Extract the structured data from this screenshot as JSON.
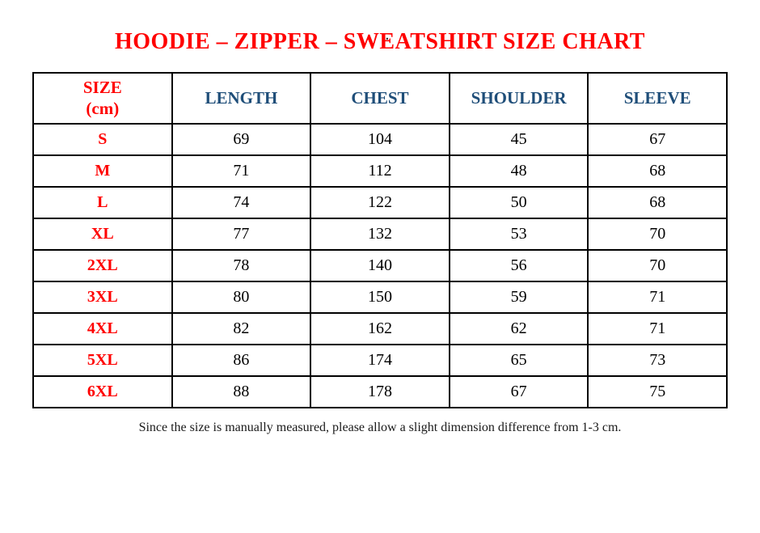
{
  "page": {
    "artifact_dot": ".",
    "title": "HOODIE – ZIPPER – SWEATSHIRT SIZE CHART",
    "footnote": "Since the size is manually measured, please allow a slight dimension difference from 1-3 cm."
  },
  "colors": {
    "title_red": "#ff0000",
    "header_blue": "#1f4e79",
    "border_black": "#000000"
  },
  "size_chart": {
    "headers": [
      {
        "label": "SIZE",
        "sublabel": "(cm)",
        "color": "red"
      },
      {
        "label": "LENGTH",
        "sublabel": "",
        "color": "blue"
      },
      {
        "label": "CHEST",
        "sublabel": "",
        "color": "blue"
      },
      {
        "label": "SHOULDER",
        "sublabel": "",
        "color": "blue"
      },
      {
        "label": "SLEEVE",
        "sublabel": "",
        "color": "blue"
      }
    ],
    "rows": [
      {
        "size": "S",
        "values": [
          "69",
          "104",
          "45",
          "67"
        ]
      },
      {
        "size": "M",
        "values": [
          "71",
          "112",
          "48",
          "68"
        ]
      },
      {
        "size": "L",
        "values": [
          "74",
          "122",
          "50",
          "68"
        ]
      },
      {
        "size": "XL",
        "values": [
          "77",
          "132",
          "53",
          "70"
        ]
      },
      {
        "size": "2XL",
        "values": [
          "78",
          "140",
          "56",
          "70"
        ]
      },
      {
        "size": "3XL",
        "values": [
          "80",
          "150",
          "59",
          "71"
        ]
      },
      {
        "size": "4XL",
        "values": [
          "82",
          "162",
          "62",
          "71"
        ]
      },
      {
        "size": "5XL",
        "values": [
          "86",
          "174",
          "65",
          "73"
        ]
      },
      {
        "size": "6XL",
        "values": [
          "88",
          "178",
          "67",
          "75"
        ]
      }
    ]
  }
}
